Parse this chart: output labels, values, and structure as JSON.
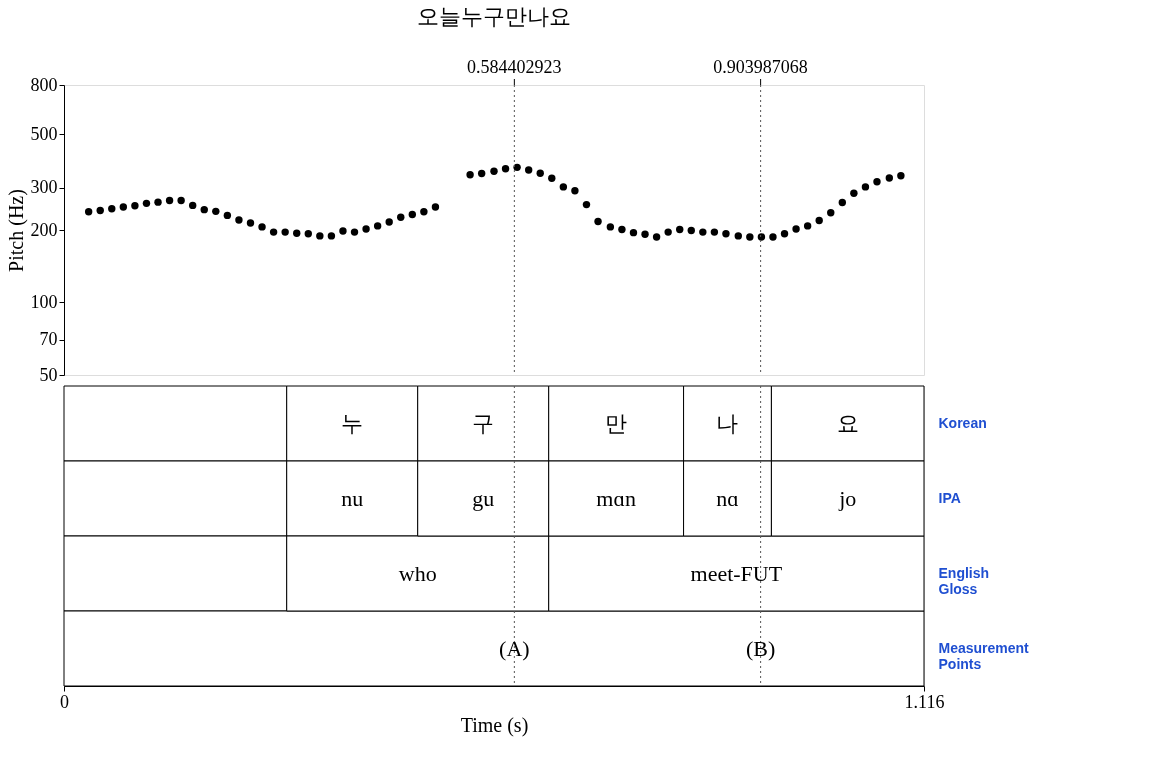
{
  "chart_data": [
    {
      "type": "scatter",
      "title": "오늘누구만나요",
      "ylabel": "Pitch (Hz)",
      "log": "y",
      "marker": "circle",
      "grid": false,
      "tick_labels": "y",
      "xlim": [
        0,
        1.116
      ],
      "ylim": [
        50,
        800
      ],
      "yticks": [
        50,
        70,
        100,
        200,
        300,
        500,
        800
      ],
      "ref_lines": [
        {
          "axis": "x",
          "value": 0.584402923,
          "label": "0.584402923",
          "line_style": "dotted"
        },
        {
          "axis": "x",
          "value": 0.903987068,
          "label": "0.903987068",
          "line_style": "dotted"
        }
      ],
      "series": [
        {
          "color": "#000000",
          "x": [
            0.032,
            0.047,
            0.062,
            0.077,
            0.092,
            0.107,
            0.122,
            0.137,
            0.152,
            0.167,
            0.182,
            0.197,
            0.212,
            0.227,
            0.242,
            0.257,
            0.272,
            0.287,
            0.302,
            0.317,
            0.332,
            0.347,
            0.362,
            0.377,
            0.392,
            0.407,
            0.422,
            0.437,
            0.452,
            0.467,
            0.482,
            0.527,
            0.542,
            0.558,
            0.573,
            0.588,
            0.603,
            0.618,
            0.633,
            0.648,
            0.663,
            0.678,
            0.693,
            0.709,
            0.724,
            0.739,
            0.754,
            0.769,
            0.784,
            0.799,
            0.814,
            0.829,
            0.844,
            0.859,
            0.875,
            0.89,
            0.905,
            0.92,
            0.935,
            0.95,
            0.965,
            0.98,
            0.995,
            1.01,
            1.025,
            1.04,
            1.055,
            1.071,
            1.086
          ],
          "values": [
            238,
            241,
            245,
            249,
            252,
            258,
            261,
            265,
            265,
            253,
            243,
            239,
            230,
            220,
            214,
            206,
            196,
            196,
            194,
            193,
            189,
            189,
            198,
            196,
            202,
            208,
            216,
            226,
            232,
            238,
            249,
            339,
            343,
            351,
            359,
            364,
            355,
            344,
            328,
            302,
            291,
            255,
            217,
            206,
            201,
            195,
            192,
            187,
            196,
            201,
            199,
            196,
            196,
            193,
            189,
            187,
            187,
            187,
            193,
            202,
            208,
            219,
            236,
            260,
            284,
            302,
            317,
            329,
            336
          ]
        }
      ]
    },
    {
      "type": "bar",
      "orientation": "horizontal",
      "stacked": true,
      "xlabel": "Time (s)",
      "xlim": [
        0,
        1.116
      ],
      "xticks": [
        0,
        1.116
      ],
      "categories": [
        "Korean",
        "IPA",
        "English Gloss",
        "Measurement Points"
      ],
      "series": [
        {
          "color": "#ffffff",
          "values": [
            0.289,
            0.289,
            0.289,
            1.116
          ]
        },
        {
          "color": "#ffffff",
          "values": [
            0.17,
            0.17,
            0.34,
            null
          ],
          "value_labels": [
            "누",
            "nu",
            "who",
            null
          ]
        },
        {
          "color": "#ffffff",
          "values": [
            0.17,
            0.17,
            0.487,
            null
          ],
          "value_labels": [
            "구",
            "gu",
            "meet-FUT",
            null
          ]
        },
        {
          "color": "#ffffff",
          "values": [
            0.175,
            0.175,
            null,
            null
          ],
          "value_labels": [
            "만",
            "mɑn",
            null,
            null
          ]
        },
        {
          "color": "#ffffff",
          "values": [
            0.114,
            0.114,
            null,
            null
          ],
          "value_labels": [
            "나",
            "nɑ",
            null,
            null
          ]
        },
        {
          "color": "#ffffff",
          "values": [
            0.198,
            0.198,
            null,
            null
          ],
          "value_labels": [
            "요",
            "jo",
            null,
            null
          ]
        }
      ],
      "annotations": [
        {
          "text": "(A)",
          "x": 0.584402923,
          "y": "Measurement Points"
        },
        {
          "text": "(B)",
          "x": 0.903987068,
          "y": "Measurement Points"
        }
      ],
      "ref_lines": [
        {
          "axis": "x",
          "value": 0.584402923,
          "label": null,
          "line_style": "dotted"
        },
        {
          "axis": "x",
          "value": 0.903987068,
          "label": null,
          "line_style": "dotted"
        }
      ]
    }
  ]
}
